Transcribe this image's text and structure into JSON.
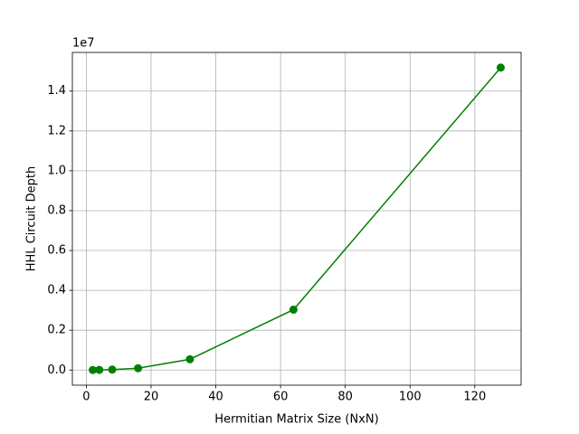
{
  "chart_data": {
    "type": "line",
    "x_label": "Hermitian Matrix Size (NxN)",
    "y_label": "HHL Circuit Depth",
    "y_offset_label": "1e7",
    "x": [
      2,
      4,
      8,
      16,
      32,
      64,
      128
    ],
    "series": [
      {
        "name": "HHL Circuit Depth",
        "color": "#008000",
        "values": [
          2000,
          8000,
          20000,
          90000,
          540000,
          3030000,
          15180000
        ]
      }
    ],
    "xlim": [
      -4.3,
      134.3
    ],
    "ylim": [
      -760000,
      15940000
    ],
    "xticks": [
      0,
      20,
      40,
      60,
      80,
      100,
      120
    ],
    "yticks": [
      {
        "value": 0,
        "label": "0.0"
      },
      {
        "value": 2000000,
        "label": "0.2"
      },
      {
        "value": 4000000,
        "label": "0.4"
      },
      {
        "value": 6000000,
        "label": "0.6"
      },
      {
        "value": 8000000,
        "label": "0.8"
      },
      {
        "value": 10000000,
        "label": "1.0"
      },
      {
        "value": 12000000,
        "label": "1.2"
      },
      {
        "value": 14000000,
        "label": "1.4"
      }
    ],
    "grid": true
  }
}
